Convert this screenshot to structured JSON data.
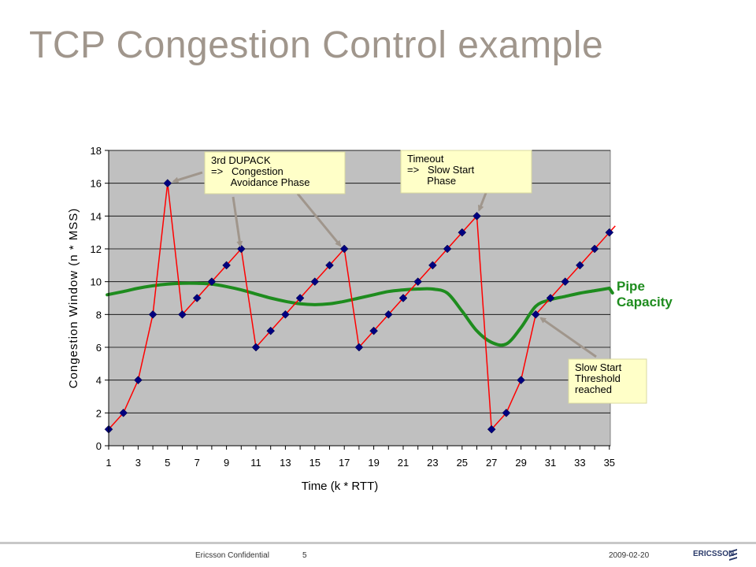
{
  "slide": {
    "title": "TCP Congestion Control example",
    "footer_left": "Ericsson Confidential",
    "page_number": "5",
    "date": "2009-02-20",
    "logo_text": "ERICSSON"
  },
  "chart_data": {
    "type": "line",
    "xlabel": "Time (k * RTT)",
    "ylabel": "Congestion Window (n * MSS)",
    "xlim": [
      1,
      35
    ],
    "ylim": [
      0,
      18
    ],
    "x_ticks": [
      1,
      3,
      5,
      7,
      9,
      11,
      13,
      15,
      17,
      19,
      21,
      23,
      25,
      27,
      29,
      31,
      33,
      35
    ],
    "y_ticks": [
      0,
      2,
      4,
      6,
      8,
      10,
      12,
      14,
      16,
      18
    ],
    "grid": "horizontal",
    "plot_background": "#c0c0c0",
    "series": [
      {
        "color": "#ff0000",
        "marker_color": "#00007f",
        "marker": "diamond",
        "x": [
          1,
          2,
          3,
          4,
          5,
          6,
          7,
          8,
          9,
          10,
          11,
          12,
          13,
          14,
          15,
          16,
          17,
          18,
          19,
          20,
          21,
          22,
          23,
          24,
          25,
          26,
          27,
          28,
          29,
          30,
          31,
          32,
          33,
          34,
          35
        ],
        "y": [
          1,
          2,
          4,
          8,
          16,
          8,
          9,
          10,
          11,
          12,
          6,
          7,
          8,
          9,
          10,
          11,
          12,
          6,
          7,
          8,
          9,
          10,
          11,
          12,
          13,
          14,
          1,
          2,
          4,
          8,
          9,
          10,
          11,
          12,
          13
        ]
      }
    ],
    "pipe_capacity": {
      "label_line1": "Pipe",
      "label_line2": "Capacity",
      "color": "#1e8c1e",
      "x": [
        0.9,
        2,
        3,
        4,
        5,
        6,
        7,
        8,
        9,
        10,
        11,
        12,
        13,
        14,
        15,
        16,
        17,
        18,
        19,
        20,
        21,
        22,
        23,
        24,
        25,
        26,
        27,
        28,
        29,
        30,
        31,
        32,
        33,
        34,
        35
      ],
      "y": [
        9.2,
        9.4,
        9.6,
        9.75,
        9.85,
        9.9,
        9.9,
        9.85,
        9.7,
        9.5,
        9.25,
        9.0,
        8.8,
        8.65,
        8.6,
        8.65,
        8.8,
        9.0,
        9.2,
        9.4,
        9.5,
        9.55,
        9.55,
        9.3,
        8.2,
        7.0,
        6.3,
        6.2,
        7.2,
        8.5,
        8.9,
        9.1,
        9.3,
        9.45,
        9.6
      ]
    },
    "annotations": [
      {
        "id": "dupack",
        "lines": [
          "3rd DUPACK",
          "=>   Congestion",
          "       Avoidance Phase"
        ],
        "arrows_to": [
          [
            5,
            16
          ],
          [
            10,
            11.8
          ],
          [
            17,
            11.9
          ]
        ]
      },
      {
        "id": "timeout",
        "lines": [
          "Timeout",
          "=>   Slow Start",
          "       Phase"
        ],
        "arrows_to": [
          [
            26,
            14
          ]
        ]
      },
      {
        "id": "threshold",
        "lines": [
          "Slow Start",
          "Threshold",
          "reached"
        ],
        "arrows_to": [
          [
            30,
            8
          ]
        ]
      }
    ],
    "annotation_fill": "#ffffc8",
    "arrow_color": "#a0968c"
  }
}
